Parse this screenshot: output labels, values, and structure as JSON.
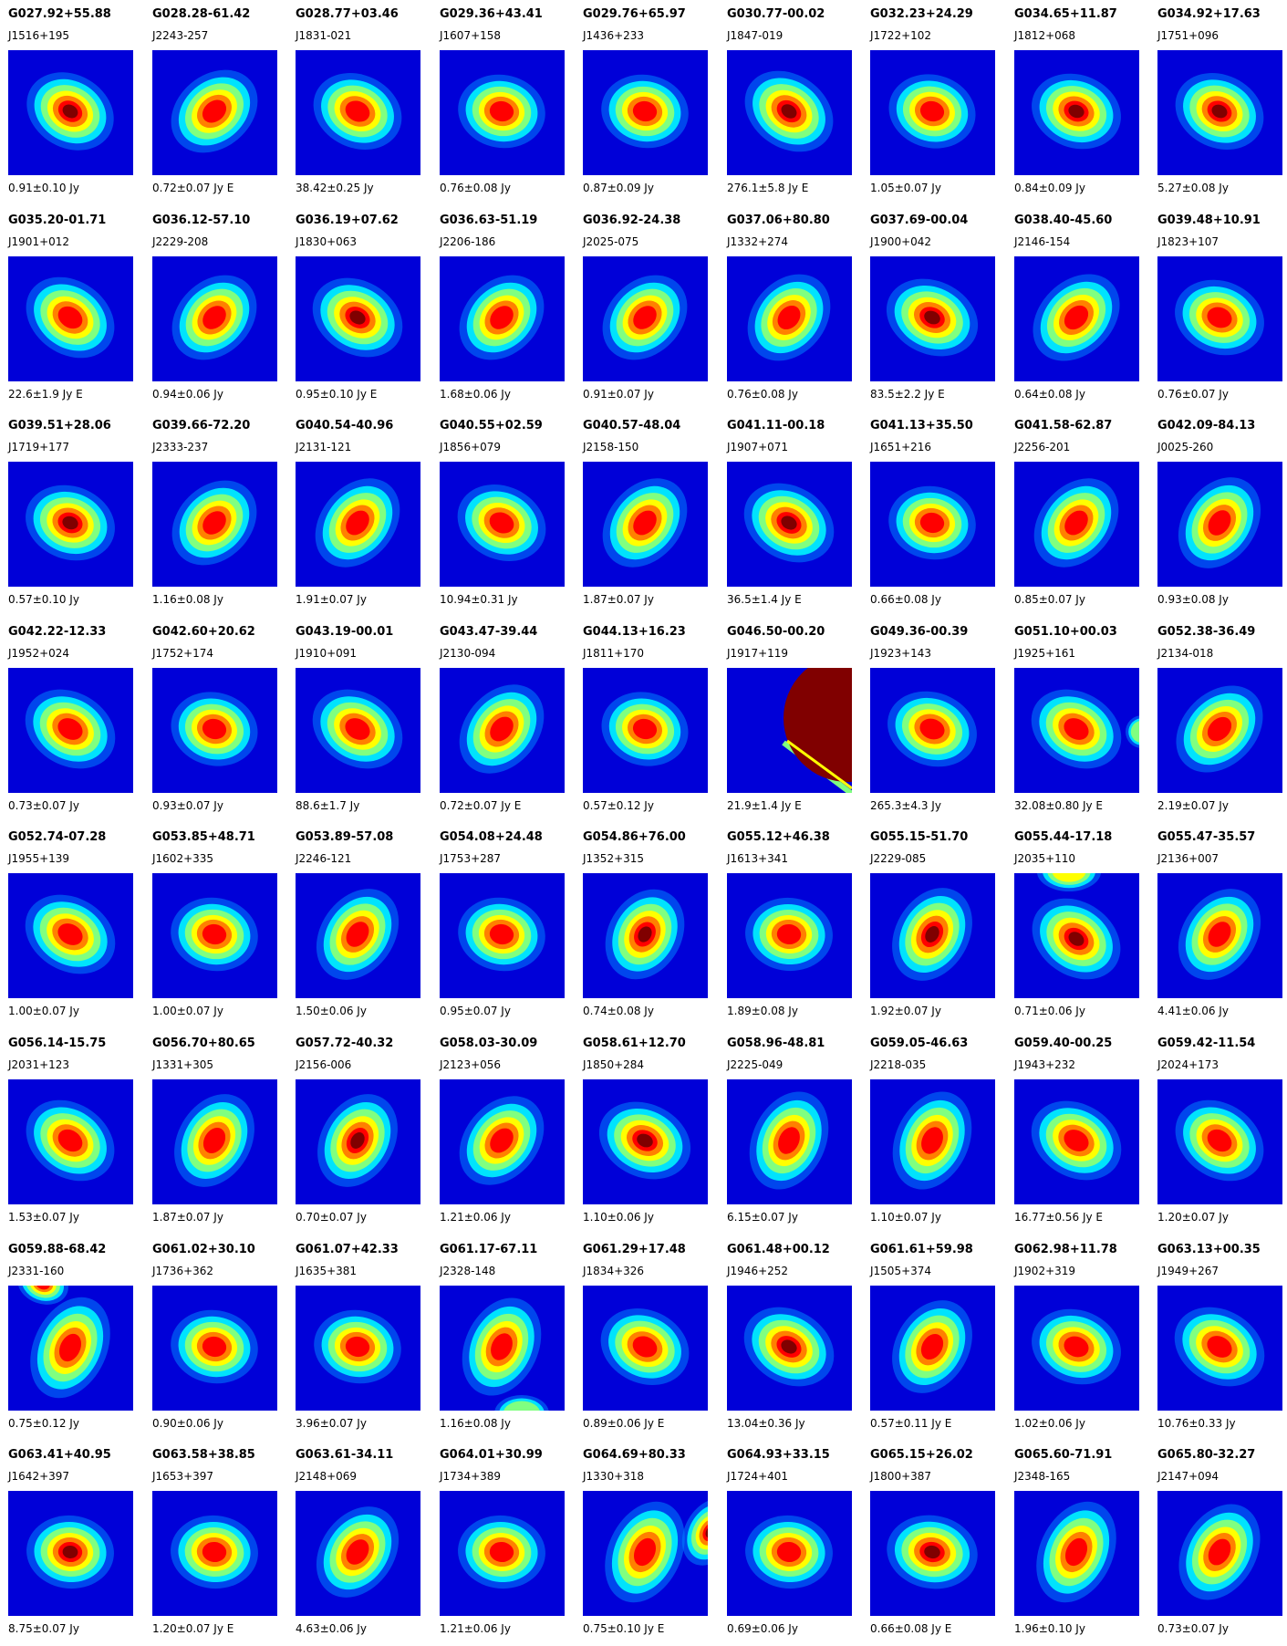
{
  "colormap": [
    "#00008f",
    "#0000ff",
    "#0080ff",
    "#00ffff",
    "#80ff80",
    "#ffff00",
    "#ff8000",
    "#ff0000",
    "#800000"
  ],
  "background_color": "#0000d8",
  "sources": [
    {
      "name": "G027.92+55.88",
      "alias": "J1516+195",
      "flux": "0.91±0.10 Jy",
      "peak": 1.0,
      "ang": 30,
      "el": 1.25
    },
    {
      "name": "G028.28-61.42",
      "alias": "J2243-257",
      "flux": "0.72±0.07 Jy E",
      "peak": 0.9,
      "ang": -40,
      "el": 1.3
    },
    {
      "name": "G028.77+03.46",
      "alias": "J1831-021",
      "flux": "38.42±0.25 Jy",
      "peak": 0.9,
      "ang": 25,
      "el": 1.25
    },
    {
      "name": "G029.36+43.41",
      "alias": "J1607+158",
      "flux": "0.76±0.08 Jy",
      "peak": 0.9,
      "ang": 10,
      "el": 1.2
    },
    {
      "name": "G029.76+65.97",
      "alias": "J1436+233",
      "flux": "0.87±0.09 Jy",
      "peak": 0.9,
      "ang": 10,
      "el": 1.2
    },
    {
      "name": "G030.77-00.02",
      "alias": "J1847-019",
      "flux": "276.1±5.8 Jy E",
      "peak": 0.95,
      "ang": 35,
      "el": 1.3
    },
    {
      "name": "G032.23+24.29",
      "alias": "J1722+102",
      "flux": "1.05±0.07 Jy",
      "peak": 0.9,
      "ang": 15,
      "el": 1.2
    },
    {
      "name": "G034.65+11.87",
      "alias": "J1812+068",
      "flux": "0.84±0.09 Jy",
      "peak": 1.0,
      "ang": 20,
      "el": 1.25
    },
    {
      "name": "G034.92+17.63",
      "alias": "J1751+096",
      "flux": "5.27±0.08 Jy",
      "peak": 0.95,
      "ang": 25,
      "el": 1.25
    },
    {
      "name": "G035.20-01.71",
      "alias": "J1901+012",
      "flux": "22.6±1.9 Jy E",
      "peak": 0.9,
      "ang": 35,
      "el": 1.3
    },
    {
      "name": "G036.12-57.10",
      "alias": "J2229-208",
      "flux": "0.94±0.06 Jy",
      "peak": 0.9,
      "ang": -45,
      "el": 1.3
    },
    {
      "name": "G036.19+07.62",
      "alias": "J1830+063",
      "flux": "0.95±0.10 Jy E",
      "peak": 1.0,
      "ang": 30,
      "el": 1.3
    },
    {
      "name": "G036.63-51.19",
      "alias": "J2206-186",
      "flux": "1.68±0.06 Jy",
      "peak": 0.9,
      "ang": -45,
      "el": 1.3
    },
    {
      "name": "G036.92-24.38",
      "alias": "J2025-075",
      "flux": "0.91±0.07 Jy",
      "peak": 0.9,
      "ang": -45,
      "el": 1.3
    },
    {
      "name": "G037.06+80.80",
      "alias": "J1332+274",
      "flux": "0.76±0.08 Jy",
      "peak": 0.9,
      "ang": -50,
      "el": 1.3
    },
    {
      "name": "G037.69-00.04",
      "alias": "J1900+042",
      "flux": "83.5±2.2 Jy E",
      "peak": 0.95,
      "ang": 25,
      "el": 1.3
    },
    {
      "name": "G038.40-45.60",
      "alias": "J2146-154",
      "flux": "0.64±0.08 Jy",
      "peak": 0.9,
      "ang": -45,
      "el": 1.35
    },
    {
      "name": "G039.48+10.91",
      "alias": "J1823+107",
      "flux": "0.76±0.07 Jy",
      "peak": 0.85,
      "ang": 20,
      "el": 1.25
    },
    {
      "name": "G039.51+28.06",
      "alias": "J1719+177",
      "flux": "0.57±0.10 Jy",
      "peak": 1.0,
      "ang": 20,
      "el": 1.25
    },
    {
      "name": "G039.66-72.20",
      "alias": "J2333-237",
      "flux": "1.16±0.08 Jy",
      "peak": 0.9,
      "ang": -45,
      "el": 1.3
    },
    {
      "name": "G040.54-40.96",
      "alias": "J2131-121",
      "flux": "1.91±0.07 Jy",
      "peak": 0.9,
      "ang": -50,
      "el": 1.35
    },
    {
      "name": "G040.55+02.59",
      "alias": "J1856+079",
      "flux": "10.94±0.31 Jy",
      "peak": 0.9,
      "ang": 25,
      "el": 1.25
    },
    {
      "name": "G040.57-48.04",
      "alias": "J2158-150",
      "flux": "1.87±0.07 Jy",
      "peak": 0.9,
      "ang": -50,
      "el": 1.35
    },
    {
      "name": "G041.11-00.18",
      "alias": "J1907+071",
      "flux": "36.5±1.4 Jy E",
      "peak": 1.0,
      "ang": 30,
      "el": 1.3
    },
    {
      "name": "G041.13+35.50",
      "alias": "J1651+216",
      "flux": "0.66±0.08 Jy",
      "peak": 0.85,
      "ang": 10,
      "el": 1.2
    },
    {
      "name": "G041.58-62.87",
      "alias": "J2256-201",
      "flux": "0.85±0.07 Jy",
      "peak": 0.9,
      "ang": -50,
      "el": 1.35
    },
    {
      "name": "G042.09-84.13",
      "alias": "J0025-260",
      "flux": "0.93±0.08 Jy",
      "peak": 0.9,
      "ang": -55,
      "el": 1.35
    },
    {
      "name": "G042.22-12.33",
      "alias": "J1952+024",
      "flux": "0.73±0.07 Jy",
      "peak": 0.9,
      "ang": 30,
      "el": 1.3
    },
    {
      "name": "G042.60+20.62",
      "alias": "J1752+174",
      "flux": "0.93±0.07 Jy",
      "peak": 0.9,
      "ang": 15,
      "el": 1.2
    },
    {
      "name": "G043.19-00.01",
      "alias": "J1910+091",
      "flux": "88.6±1.7 Jy",
      "peak": 0.9,
      "ang": 30,
      "el": 1.3
    },
    {
      "name": "G043.47-39.44",
      "alias": "J2130-094",
      "flux": "0.72±0.07 Jy E",
      "peak": 0.9,
      "ang": -50,
      "el": 1.35
    },
    {
      "name": "G044.13+16.23",
      "alias": "J1811+170",
      "flux": "0.57±0.12 Jy",
      "peak": 0.9,
      "ang": 15,
      "el": 1.2
    },
    {
      "name": "G046.50-00.20",
      "alias": "J1917+119",
      "flux": "21.9±1.4 Jy E",
      "peak": 0.0,
      "ang": 0,
      "el": 1.0,
      "special": "big-blob"
    },
    {
      "name": "G049.36-00.39",
      "alias": "J1923+143",
      "flux": "265.3±4.3 Jy",
      "peak": 0.9,
      "ang": 20,
      "el": 1.25
    },
    {
      "name": "G051.10+00.03",
      "alias": "J1925+161",
      "flux": "32.08±0.80 Jy E",
      "peak": 0.85,
      "ang": 30,
      "el": 1.3,
      "special": "edge-right"
    },
    {
      "name": "G052.38-36.49",
      "alias": "J2134-018",
      "flux": "2.19±0.07 Jy",
      "peak": 0.9,
      "ang": -45,
      "el": 1.35
    },
    {
      "name": "G052.74-07.28",
      "alias": "J1955+139",
      "flux": "1.00±0.07 Jy",
      "peak": 0.9,
      "ang": 30,
      "el": 1.3
    },
    {
      "name": "G053.85+48.71",
      "alias": "J1602+335",
      "flux": "1.00±0.07 Jy",
      "peak": 0.9,
      "ang": 10,
      "el": 1.2
    },
    {
      "name": "G053.89-57.08",
      "alias": "J2246-121",
      "flux": "1.50±0.06 Jy",
      "peak": 0.9,
      "ang": -55,
      "el": 1.35
    },
    {
      "name": "G054.08+24.48",
      "alias": "J1753+287",
      "flux": "0.95±0.07 Jy",
      "peak": 0.9,
      "ang": 10,
      "el": 1.2
    },
    {
      "name": "G054.86+76.00",
      "alias": "J1352+315",
      "flux": "0.74±0.08 Jy",
      "peak": 0.95,
      "ang": -60,
      "el": 1.3
    },
    {
      "name": "G055.12+46.38",
      "alias": "J1613+341",
      "flux": "1.89±0.08 Jy",
      "peak": 0.9,
      "ang": 5,
      "el": 1.2
    },
    {
      "name": "G055.15-51.70",
      "alias": "J2229-085",
      "flux": "1.92±0.07 Jy",
      "peak": 0.95,
      "ang": -60,
      "el": 1.35
    },
    {
      "name": "G055.44-17.18",
      "alias": "J2035+110",
      "flux": "0.71±0.06 Jy",
      "peak": 1.0,
      "ang": 35,
      "el": 1.3,
      "special": "top-blob"
    },
    {
      "name": "G055.47-35.57",
      "alias": "J2136+007",
      "flux": "4.41±0.06 Jy",
      "peak": 0.9,
      "ang": -55,
      "el": 1.35
    },
    {
      "name": "G056.14-15.75",
      "alias": "J2031+123",
      "flux": "1.53±0.07 Jy",
      "peak": 0.9,
      "ang": 35,
      "el": 1.3
    },
    {
      "name": "G056.70+80.65",
      "alias": "J1331+305",
      "flux": "1.87±0.07 Jy",
      "peak": 0.9,
      "ang": -60,
      "el": 1.35
    },
    {
      "name": "G057.72-40.32",
      "alias": "J2156-006",
      "flux": "0.70±0.07 Jy",
      "peak": 1.0,
      "ang": -60,
      "el": 1.35
    },
    {
      "name": "G058.03-30.09",
      "alias": "J2123+056",
      "flux": "1.21±0.06 Jy",
      "peak": 0.9,
      "ang": -50,
      "el": 1.35
    },
    {
      "name": "G058.61+12.70",
      "alias": "J1850+284",
      "flux": "1.10±0.06 Jy",
      "peak": 1.0,
      "ang": 25,
      "el": 1.3
    },
    {
      "name": "G058.96-48.81",
      "alias": "J2225-049",
      "flux": "6.15±0.07 Jy",
      "peak": 0.9,
      "ang": -65,
      "el": 1.4
    },
    {
      "name": "G059.05-46.63",
      "alias": "J2218-035",
      "flux": "1.10±0.07 Jy",
      "peak": 0.9,
      "ang": -65,
      "el": 1.4
    },
    {
      "name": "G059.40-00.25",
      "alias": "J1943+232",
      "flux": "16.77±0.56 Jy E",
      "peak": 0.9,
      "ang": 30,
      "el": 1.3
    },
    {
      "name": "G059.42-11.54",
      "alias": "J2024+173",
      "flux": "1.20±0.07 Jy",
      "peak": 0.9,
      "ang": 35,
      "el": 1.3
    },
    {
      "name": "G059.88-68.42",
      "alias": "J2331-160",
      "flux": "0.75±0.12 Jy",
      "peak": 0.9,
      "ang": -65,
      "el": 1.45,
      "special": "topleft-blob"
    },
    {
      "name": "G061.02+30.10",
      "alias": "J1736+362",
      "flux": "0.90±0.06 Jy",
      "peak": 0.9,
      "ang": 10,
      "el": 1.2
    },
    {
      "name": "G061.07+42.33",
      "alias": "J1635+381",
      "flux": "3.96±0.07 Jy",
      "peak": 0.9,
      "ang": 10,
      "el": 1.2
    },
    {
      "name": "G061.17-67.11",
      "alias": "J2328-148",
      "flux": "1.16±0.08 Jy",
      "peak": 0.9,
      "ang": -65,
      "el": 1.4,
      "special": "bottom-blob"
    },
    {
      "name": "G061.29+17.48",
      "alias": "J1834+326",
      "flux": "0.89±0.06 Jy E",
      "peak": 0.9,
      "ang": 25,
      "el": 1.25
    },
    {
      "name": "G061.48+00.12",
      "alias": "J1946+252",
      "flux": "13.04±0.36 Jy",
      "peak": 1.0,
      "ang": 30,
      "el": 1.3
    },
    {
      "name": "G061.61+59.98",
      "alias": "J1505+374",
      "flux": "0.57±0.11 Jy E",
      "peak": 0.9,
      "ang": -60,
      "el": 1.35
    },
    {
      "name": "G062.98+11.78",
      "alias": "J1902+319",
      "flux": "1.02±0.06 Jy",
      "peak": 0.9,
      "ang": 20,
      "el": 1.25
    },
    {
      "name": "G063.13+00.35",
      "alias": "J1949+267",
      "flux": "10.76±0.33 Jy",
      "peak": 0.9,
      "ang": 30,
      "el": 1.3
    },
    {
      "name": "G063.41+40.95",
      "alias": "J1642+397",
      "flux": "8.75±0.07 Jy",
      "peak": 1.0,
      "ang": 5,
      "el": 1.2
    },
    {
      "name": "G063.58+38.85",
      "alias": "J1653+397",
      "flux": "1.20±0.07 Jy E",
      "peak": 0.9,
      "ang": 5,
      "el": 1.2
    },
    {
      "name": "G063.61-34.11",
      "alias": "J2148+069",
      "flux": "4.63±0.06 Jy",
      "peak": 0.9,
      "ang": -55,
      "el": 1.35
    },
    {
      "name": "G064.01+30.99",
      "alias": "J1734+389",
      "flux": "1.21±0.06 Jy",
      "peak": 0.9,
      "ang": 5,
      "el": 1.2
    },
    {
      "name": "G064.69+80.33",
      "alias": "J1330+318",
      "flux": "0.75±0.10 Jy E",
      "peak": 0.9,
      "ang": -65,
      "el": 1.45,
      "special": "right-edge-blob"
    },
    {
      "name": "G064.93+33.15",
      "alias": "J1724+401",
      "flux": "0.69±0.06 Jy",
      "peak": 0.9,
      "ang": 5,
      "el": 1.2
    },
    {
      "name": "G065.15+26.02",
      "alias": "J1800+387",
      "flux": "0.66±0.08 Jy E",
      "peak": 1.0,
      "ang": 10,
      "el": 1.25
    },
    {
      "name": "G065.60-71.91",
      "alias": "J2348-165",
      "flux": "1.96±0.10 Jy",
      "peak": 0.9,
      "ang": -65,
      "el": 1.45
    },
    {
      "name": "G065.80-32.27",
      "alias": "J2147+094",
      "flux": "0.73±0.07 Jy",
      "peak": 0.9,
      "ang": -60,
      "el": 1.4
    }
  ]
}
